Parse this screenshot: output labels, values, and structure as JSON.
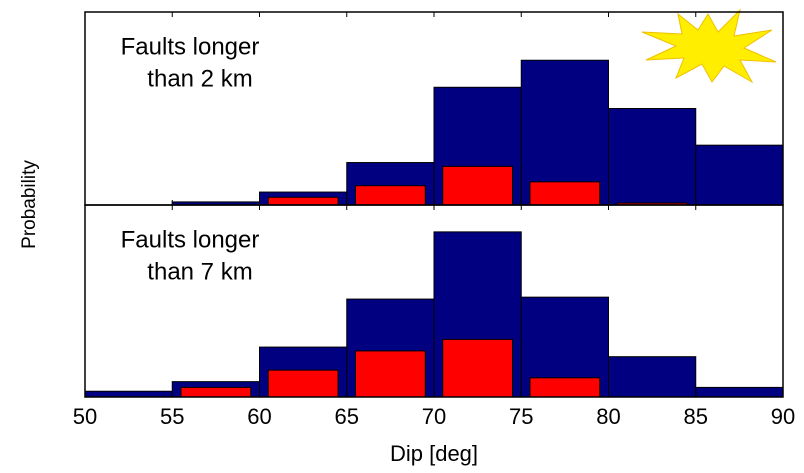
{
  "chart_data": [
    {
      "type": "histogram",
      "annotation": [
        "Faults longer",
        "than 2 km"
      ],
      "bins": [
        50,
        55,
        60,
        65,
        70,
        75,
        80,
        85,
        90
      ],
      "series": [
        {
          "color": "#000080",
          "values": [
            0,
            0.016,
            0.067,
            0.22,
            0.61,
            0.75,
            0.5,
            0.31
          ]
        },
        {
          "color": "#ff0000",
          "values": [
            0,
            0,
            0.04,
            0.1,
            0.2,
            0.12,
            0.01,
            0
          ]
        }
      ],
      "xlim": [
        50,
        90
      ],
      "ylim": [
        0,
        1
      ],
      "xticks": [
        50,
        55,
        60,
        65,
        70,
        75,
        80,
        85,
        90
      ]
    },
    {
      "type": "histogram",
      "annotation": [
        "Faults longer",
        "than 7 km"
      ],
      "bins": [
        50,
        55,
        60,
        65,
        70,
        75,
        80,
        85,
        90
      ],
      "series": [
        {
          "color": "#000080",
          "values": [
            0.03,
            0.08,
            0.26,
            0.51,
            0.86,
            0.52,
            0.21,
            0.05
          ]
        },
        {
          "color": "#ff0000",
          "values": [
            0,
            0.05,
            0.14,
            0.24,
            0.3,
            0.1,
            0,
            0
          ]
        }
      ],
      "xlim": [
        50,
        90
      ],
      "ylim": [
        0,
        1
      ],
      "xticks": [
        50,
        55,
        60,
        65,
        70,
        75,
        80,
        85,
        90
      ],
      "xlabel": "Dip [deg]",
      "ylabel": "Probability"
    }
  ]
}
